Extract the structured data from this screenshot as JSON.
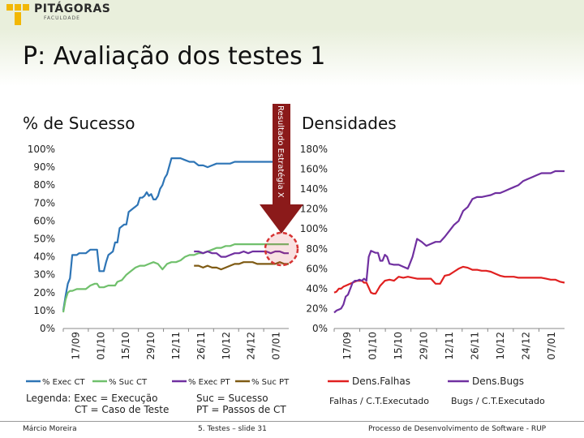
{
  "logo": {
    "name": "PITÁGORAS",
    "sub": "FACULDADE"
  },
  "slide": {
    "title": "P: Avaliação dos testes 1"
  },
  "colors": {
    "exec_ct": "#2e75b6",
    "suc_ct": "#70c06c",
    "exec_pt": "#7030a0",
    "suc_pt": "#7f5b14",
    "falhas": "#e02020",
    "bugs": "#7030a0",
    "arrow": "#8b1a1a",
    "circle": "#d73434"
  },
  "left_chart": {
    "title": "% de Sucesso",
    "rotated_label": "Resultado Estratégia X",
    "legend_note_1": "Legenda: Exec = Execução",
    "legend_note_2": "CT = Caso de Teste",
    "legend_note_3": "Suc = Sucesso",
    "legend_note_4": "PT = Passos de CT"
  },
  "right_chart": {
    "title": "Densidades",
    "note_1": "Falhas / C.T.Executado",
    "note_2": "Bugs / C.T.Executado"
  },
  "chart_data": [
    {
      "type": "line",
      "title": "% de Sucesso",
      "ylim": [
        0,
        100
      ],
      "yticks": [
        "0%",
        "10%",
        "20%",
        "30%",
        "40%",
        "50%",
        "60%",
        "70%",
        "80%",
        "90%",
        "100%"
      ],
      "x_ticks": [
        "17/09",
        "01/10",
        "15/10",
        "29/10",
        "12/11",
        "26/11",
        "10/12",
        "24/12",
        "07/01"
      ],
      "series": [
        {
          "name": "% Exec CT",
          "color": "#2e75b6",
          "x": [
            0,
            1,
            2,
            3,
            4,
            5,
            6,
            7,
            8,
            10,
            12,
            14,
            15,
            16,
            17,
            18,
            19,
            20,
            21,
            22,
            23,
            24,
            25,
            26,
            27,
            28,
            29,
            30,
            31,
            32,
            33,
            34,
            35,
            36,
            37,
            38,
            39,
            40,
            41,
            42,
            43,
            44,
            45,
            46,
            48,
            50,
            52,
            54,
            56,
            58,
            60,
            62,
            64,
            66,
            68,
            70,
            72,
            74,
            76,
            78,
            80,
            82,
            84,
            86,
            88,
            90,
            92,
            94,
            96,
            98,
            100
          ],
          "y": [
            10,
            18,
            25,
            28,
            41,
            41,
            41,
            42,
            42,
            42,
            44,
            44,
            44,
            32,
            32,
            32,
            37,
            41,
            42,
            43,
            48,
            48,
            56,
            57,
            58,
            58,
            65,
            66,
            67,
            68,
            69,
            73,
            73,
            74,
            76,
            74,
            75,
            72,
            72,
            74,
            78,
            80,
            84,
            86,
            95,
            95,
            95,
            94,
            93,
            93,
            91,
            91,
            90,
            91,
            92,
            92,
            92,
            92,
            93,
            93,
            93,
            93,
            93,
            93,
            93,
            93,
            93,
            93,
            93,
            93,
            93
          ]
        },
        {
          "name": "% Suc CT",
          "color": "#70c06c",
          "x": [
            0,
            1,
            2,
            3,
            4,
            6,
            8,
            10,
            12,
            14,
            15,
            16,
            18,
            20,
            22,
            23,
            24,
            26,
            28,
            30,
            32,
            34,
            36,
            38,
            40,
            42,
            44,
            46,
            48,
            50,
            52,
            54,
            56,
            58,
            60,
            62,
            64,
            66,
            68,
            70,
            72,
            74,
            76,
            78,
            80,
            82,
            84,
            86,
            88,
            90,
            92,
            94,
            96,
            98,
            100
          ],
          "y": [
            9,
            16,
            20,
            21,
            21,
            22,
            22,
            22,
            24,
            25,
            25,
            23,
            23,
            24,
            24,
            24,
            26,
            27,
            30,
            32,
            34,
            35,
            35,
            36,
            37,
            36,
            33,
            36,
            37,
            37,
            38,
            40,
            41,
            41,
            42,
            42,
            43,
            44,
            45,
            45,
            46,
            46,
            47,
            47,
            47,
            47,
            47,
            47,
            47,
            47,
            47,
            47,
            47,
            47,
            47
          ]
        },
        {
          "name": "% Exec PT",
          "color": "#7030a0",
          "x": [
            58,
            60,
            62,
            64,
            66,
            68,
            70,
            72,
            74,
            76,
            78,
            80,
            82,
            84,
            86,
            88,
            90,
            92,
            94,
            96,
            98,
            100
          ],
          "y": [
            43,
            43,
            42,
            43,
            42,
            42,
            40,
            40,
            41,
            42,
            42,
            43,
            42,
            43,
            43,
            43,
            43,
            42,
            43,
            43,
            42,
            42
          ]
        },
        {
          "name": "% Suc PT",
          "color": "#7f5b14",
          "x": [
            58,
            60,
            62,
            64,
            66,
            68,
            70,
            72,
            74,
            76,
            78,
            80,
            82,
            84,
            86,
            88,
            90,
            92,
            94,
            96,
            98,
            100
          ],
          "y": [
            35,
            35,
            34,
            35,
            34,
            34,
            33,
            34,
            35,
            36,
            36,
            37,
            37,
            37,
            36,
            36,
            36,
            36,
            36,
            37,
            36,
            36
          ]
        }
      ]
    },
    {
      "type": "line",
      "title": "Densidades",
      "ylim": [
        0,
        180
      ],
      "yticks": [
        "0%",
        "20%",
        "40%",
        "60%",
        "80%",
        "100%",
        "120%",
        "140%",
        "160%",
        "180%"
      ],
      "x_ticks": [
        "17/09",
        "01/10",
        "15/10",
        "29/10",
        "12/11",
        "26/11",
        "10/12",
        "24/12",
        "07/01"
      ],
      "series": [
        {
          "name": "Dens.Falhas",
          "color": "#e02020",
          "x": [
            0,
            1,
            2,
            3,
            4,
            5,
            6,
            8,
            10,
            12,
            13,
            14,
            16,
            17,
            18,
            20,
            22,
            24,
            26,
            28,
            30,
            32,
            34,
            36,
            38,
            40,
            42,
            44,
            46,
            48,
            50,
            52,
            54,
            56,
            58,
            60,
            62,
            64,
            66,
            68,
            70,
            72,
            74,
            76,
            78,
            80,
            82,
            84,
            86,
            88,
            90,
            92,
            94,
            96,
            98,
            100
          ],
          "y": [
            36,
            37,
            40,
            40,
            42,
            43,
            44,
            46,
            48,
            48,
            46,
            46,
            36,
            35,
            35,
            43,
            48,
            49,
            48,
            52,
            51,
            52,
            51,
            50,
            50,
            50,
            50,
            45,
            45,
            53,
            54,
            57,
            60,
            62,
            61,
            59,
            59,
            58,
            58,
            57,
            55,
            53,
            52,
            52,
            52,
            51,
            51,
            51,
            51,
            51,
            51,
            50,
            49,
            49,
            47,
            46
          ]
        },
        {
          "name": "Dens.Bugs",
          "color": "#7030a0",
          "x": [
            0,
            1,
            2,
            3,
            4,
            5,
            6,
            7,
            8,
            9,
            10,
            11,
            12,
            13,
            14,
            15,
            16,
            17,
            18,
            19,
            20,
            21,
            22,
            23,
            24,
            26,
            28,
            30,
            32,
            34,
            36,
            38,
            40,
            42,
            44,
            46,
            48,
            50,
            52,
            54,
            56,
            58,
            60,
            62,
            64,
            66,
            68,
            70,
            72,
            74,
            76,
            78,
            80,
            82,
            84,
            86,
            88,
            90,
            92,
            94,
            96,
            98,
            100
          ],
          "y": [
            16,
            18,
            19,
            20,
            24,
            32,
            34,
            40,
            46,
            48,
            48,
            49,
            48,
            50,
            48,
            72,
            78,
            77,
            76,
            76,
            68,
            68,
            74,
            72,
            65,
            64,
            64,
            62,
            60,
            72,
            90,
            87,
            83,
            85,
            87,
            87,
            92,
            98,
            104,
            108,
            118,
            122,
            130,
            132,
            132,
            133,
            134,
            136,
            136,
            138,
            140,
            142,
            144,
            148,
            150,
            152,
            154,
            156,
            156,
            156,
            158,
            158,
            158
          ]
        }
      ]
    }
  ],
  "footer": {
    "author": "Márcio Moreira",
    "slide": "5. Testes – slide 31",
    "course": "Processo de Desenvolvimento de Software - RUP"
  }
}
